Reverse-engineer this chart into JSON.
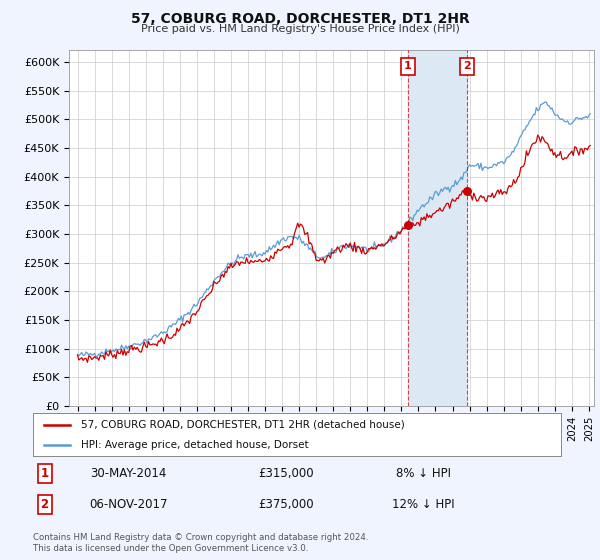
{
  "title": "57, COBURG ROAD, DORCHESTER, DT1 2HR",
  "subtitle": "Price paid vs. HM Land Registry's House Price Index (HPI)",
  "legend_line1": "57, COBURG ROAD, DORCHESTER, DT1 2HR (detached house)",
  "legend_line2": "HPI: Average price, detached house, Dorset",
  "annotation1_label": "1",
  "annotation1_date": "30-MAY-2014",
  "annotation1_price": "£315,000",
  "annotation1_hpi": "8% ↓ HPI",
  "annotation2_label": "2",
  "annotation2_date": "06-NOV-2017",
  "annotation2_price": "£375,000",
  "annotation2_hpi": "12% ↓ HPI",
  "footer": "Contains HM Land Registry data © Crown copyright and database right 2024.\nThis data is licensed under the Open Government Licence v3.0.",
  "hpi_color": "#5b9bd5",
  "price_color": "#cc0000",
  "annotation_box_color": "#cc0000",
  "background_color": "#f0f4ff",
  "plot_bg_color": "#ffffff",
  "shade_color": "#dce9f5",
  "vline1_x": 2014.37,
  "vline2_x": 2017.84,
  "sale1_x": 2014.37,
  "sale1_y": 315000,
  "sale2_x": 2017.84,
  "sale2_y": 375000,
  "ylim": [
    0,
    620000
  ],
  "xlim": [
    1994.5,
    2025.3
  ],
  "yticks": [
    0,
    50000,
    100000,
    150000,
    200000,
    250000,
    300000,
    350000,
    400000,
    450000,
    500000,
    550000,
    600000
  ]
}
